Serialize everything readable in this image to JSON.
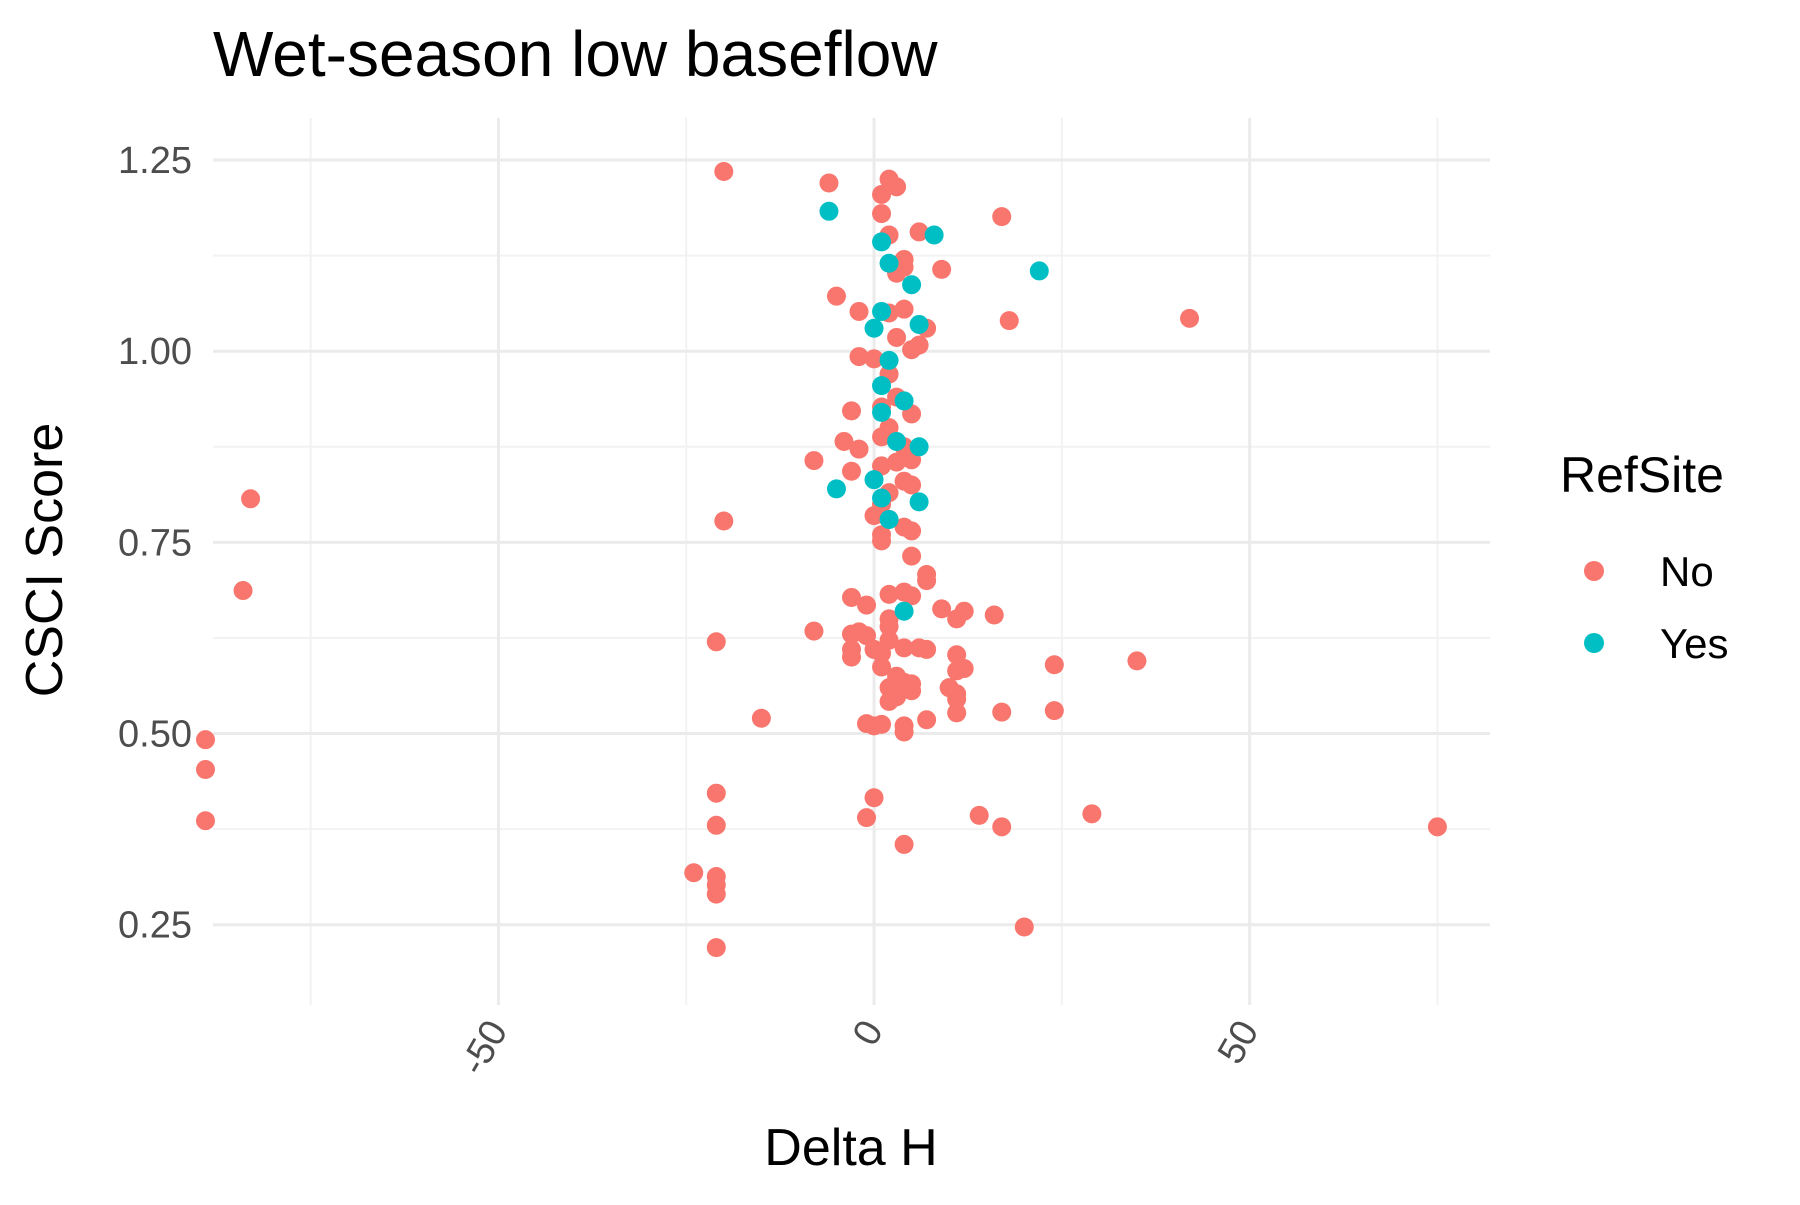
{
  "chart_data": {
    "type": "scatter",
    "title": "Wet-season low baseflow",
    "xlabel": "Delta H",
    "ylabel": "CSCI Score",
    "xlim": [
      -88,
      82
    ],
    "ylim": [
      0.145,
      1.305
    ],
    "x_ticks": [
      -50,
      0,
      50
    ],
    "x_tick_labels": [
      "-50",
      "0",
      "50"
    ],
    "x_minor_ticks": [
      -75,
      -25,
      25,
      75
    ],
    "y_ticks": [
      0.25,
      0.5,
      0.75,
      1.0,
      1.25
    ],
    "y_tick_labels": [
      "0.25",
      "0.50",
      "0.75",
      "1.00",
      "1.25"
    ],
    "y_minor_ticks": [
      0.375,
      0.625,
      0.875,
      1.125
    ],
    "grid": true,
    "x_tick_label_rotation": "-60deg",
    "legend": {
      "title": "RefSite",
      "placement": "right",
      "entries": [
        {
          "label": "No",
          "color": "#F8766D"
        },
        {
          "label": "Yes",
          "color": "#00BFC4"
        }
      ]
    },
    "series": [
      {
        "name": "No",
        "color": "#F8766D",
        "points": [
          [
            -83,
            0.807
          ],
          [
            -84,
            0.687
          ],
          [
            -89,
            0.492
          ],
          [
            -89,
            0.453
          ],
          [
            -89,
            0.386
          ],
          [
            -20,
            1.235
          ],
          [
            -20,
            0.778
          ],
          [
            -21,
            0.62
          ],
          [
            -15,
            0.52
          ],
          [
            -21,
            0.422
          ],
          [
            -21,
            0.38
          ],
          [
            -24,
            0.318
          ],
          [
            -21,
            0.313
          ],
          [
            -21,
            0.302
          ],
          [
            -21,
            0.29
          ],
          [
            -21,
            0.22
          ],
          [
            -6,
            1.22
          ],
          [
            2,
            1.225
          ],
          [
            3,
            1.215
          ],
          [
            1,
            1.205
          ],
          [
            1,
            1.18
          ],
          [
            17,
            1.176
          ],
          [
            2,
            1.152
          ],
          [
            6,
            1.156
          ],
          [
            4,
            1.12
          ],
          [
            4,
            1.11
          ],
          [
            3,
            1.102
          ],
          [
            9,
            1.107
          ],
          [
            -5,
            1.072
          ],
          [
            -2,
            1.052
          ],
          [
            4,
            1.055
          ],
          [
            2,
            1.05
          ],
          [
            7,
            1.03
          ],
          [
            3,
            1.018
          ],
          [
            6,
            1.008
          ],
          [
            5,
            1.002
          ],
          [
            18,
            1.04
          ],
          [
            42,
            1.043
          ],
          [
            -2,
            0.993
          ],
          [
            0,
            0.99
          ],
          [
            2,
            0.97
          ],
          [
            3,
            0.94
          ],
          [
            -3,
            0.922
          ],
          [
            1,
            0.927
          ],
          [
            5,
            0.918
          ],
          [
            2,
            0.9
          ],
          [
            1,
            0.888
          ],
          [
            -4,
            0.882
          ],
          [
            -2,
            0.872
          ],
          [
            4,
            0.875
          ],
          [
            -8,
            0.857
          ],
          [
            5,
            0.858
          ],
          [
            3,
            0.855
          ],
          [
            1,
            0.85
          ],
          [
            -3,
            0.843
          ],
          [
            4,
            0.83
          ],
          [
            5,
            0.825
          ],
          [
            2,
            0.815
          ],
          [
            1,
            0.8
          ],
          [
            0,
            0.785
          ],
          [
            2,
            0.78
          ],
          [
            4,
            0.77
          ],
          [
            5,
            0.765
          ],
          [
            1,
            0.76
          ],
          [
            1,
            0.752
          ],
          [
            5,
            0.732
          ],
          [
            7,
            0.708
          ],
          [
            7,
            0.7
          ],
          [
            -3,
            0.678
          ],
          [
            -1,
            0.668
          ],
          [
            2,
            0.682
          ],
          [
            4,
            0.685
          ],
          [
            5,
            0.68
          ],
          [
            9,
            0.663
          ],
          [
            11,
            0.65
          ],
          [
            12,
            0.66
          ],
          [
            16,
            0.655
          ],
          [
            2,
            0.65
          ],
          [
            2,
            0.64
          ],
          [
            -8,
            0.634
          ],
          [
            -2,
            0.633
          ],
          [
            -3,
            0.63
          ],
          [
            -1,
            0.628
          ],
          [
            2,
            0.622
          ],
          [
            0,
            0.61
          ],
          [
            -3,
            0.61
          ],
          [
            -3,
            0.6
          ],
          [
            1,
            0.605
          ],
          [
            4,
            0.612
          ],
          [
            6,
            0.612
          ],
          [
            7,
            0.61
          ],
          [
            11,
            0.603
          ],
          [
            11,
            0.582
          ],
          [
            12,
            0.585
          ],
          [
            1,
            0.587
          ],
          [
            3,
            0.575
          ],
          [
            4,
            0.567
          ],
          [
            5,
            0.565
          ],
          [
            2,
            0.56
          ],
          [
            3,
            0.555
          ],
          [
            5,
            0.556
          ],
          [
            10,
            0.56
          ],
          [
            11,
            0.552
          ],
          [
            3,
            0.548
          ],
          [
            2,
            0.542
          ],
          [
            11,
            0.545
          ],
          [
            24,
            0.59
          ],
          [
            35,
            0.595
          ],
          [
            17,
            0.528
          ],
          [
            24,
            0.53
          ],
          [
            11,
            0.527
          ],
          [
            7,
            0.518
          ],
          [
            -1,
            0.513
          ],
          [
            0,
            0.51
          ],
          [
            1,
            0.512
          ],
          [
            4,
            0.51
          ],
          [
            4,
            0.502
          ],
          [
            0,
            0.416
          ],
          [
            -1,
            0.39
          ],
          [
            14,
            0.393
          ],
          [
            17,
            0.378
          ],
          [
            29,
            0.395
          ],
          [
            4,
            0.355
          ],
          [
            20,
            0.247
          ],
          [
            75,
            0.378
          ]
        ]
      },
      {
        "name": "Yes",
        "color": "#00BFC4",
        "points": [
          [
            -6,
            1.183
          ],
          [
            1,
            1.143
          ],
          [
            8,
            1.152
          ],
          [
            2,
            1.115
          ],
          [
            5,
            1.087
          ],
          [
            22,
            1.105
          ],
          [
            1,
            1.052
          ],
          [
            6,
            1.035
          ],
          [
            0,
            1.03
          ],
          [
            2,
            0.988
          ],
          [
            1,
            0.955
          ],
          [
            4,
            0.935
          ],
          [
            1,
            0.92
          ],
          [
            3,
            0.882
          ],
          [
            6,
            0.875
          ],
          [
            -5,
            0.82
          ],
          [
            0,
            0.832
          ],
          [
            1,
            0.808
          ],
          [
            6,
            0.803
          ],
          [
            2,
            0.78
          ],
          [
            4,
            0.66
          ]
        ]
      }
    ]
  }
}
